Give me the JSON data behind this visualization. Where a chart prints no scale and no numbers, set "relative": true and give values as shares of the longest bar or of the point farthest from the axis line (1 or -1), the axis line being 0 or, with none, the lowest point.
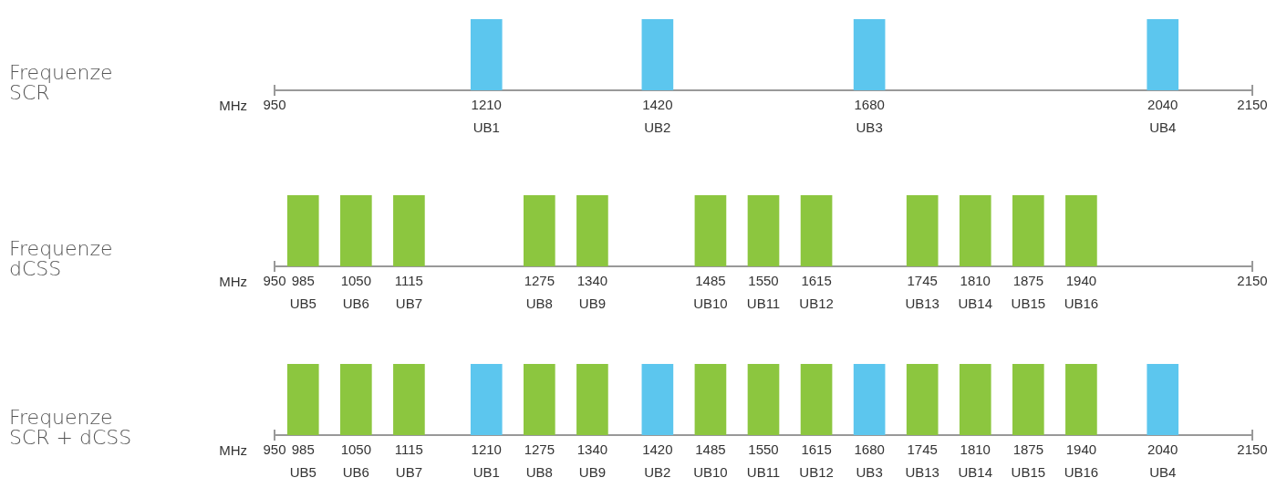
{
  "chart_data": [
    {
      "type": "bar",
      "ylabel": "Frequenze\nSCR",
      "xlabel": "MHz",
      "relative": true,
      "xlim": [
        950,
        2150
      ],
      "xticks": [
        950,
        1210,
        1420,
        1680,
        2040,
        2150
      ],
      "x": [
        1210,
        1420,
        1680,
        2040
      ],
      "values": [
        1,
        1,
        1,
        1
      ],
      "colors": [
        "#5cc6ee",
        "#5cc6ee",
        "#5cc6ee",
        "#5cc6ee"
      ],
      "annotations": [
        {
          "text": "UB1",
          "x": 1210,
          "y": 0
        },
        {
          "text": "UB2",
          "x": 1420,
          "y": 0
        },
        {
          "text": "UB3",
          "x": 1680,
          "y": 0
        },
        {
          "text": "UB4",
          "x": 2040,
          "y": 0
        }
      ]
    },
    {
      "type": "bar",
      "ylabel": "Frequenze\ndCSS",
      "xlabel": "MHz",
      "relative": true,
      "xlim": [
        950,
        2150
      ],
      "xticks": [
        950,
        985,
        1050,
        1115,
        1275,
        1340,
        1485,
        1550,
        1615,
        1745,
        1810,
        1875,
        1940,
        2150
      ],
      "x": [
        985,
        1050,
        1115,
        1275,
        1340,
        1485,
        1550,
        1615,
        1745,
        1810,
        1875,
        1940
      ],
      "values": [
        1,
        1,
        1,
        1,
        1,
        1,
        1,
        1,
        1,
        1,
        1,
        1
      ],
      "colors": [
        "#8cc63f",
        "#8cc63f",
        "#8cc63f",
        "#8cc63f",
        "#8cc63f",
        "#8cc63f",
        "#8cc63f",
        "#8cc63f",
        "#8cc63f",
        "#8cc63f",
        "#8cc63f",
        "#8cc63f"
      ],
      "annotations": [
        {
          "text": "UB5",
          "x": 985,
          "y": 0
        },
        {
          "text": "UB6",
          "x": 1050,
          "y": 0
        },
        {
          "text": "UB7",
          "x": 1115,
          "y": 0
        },
        {
          "text": "UB8",
          "x": 1275,
          "y": 0
        },
        {
          "text": "UB9",
          "x": 1340,
          "y": 0
        },
        {
          "text": "UB10",
          "x": 1485,
          "y": 0
        },
        {
          "text": "UB11",
          "x": 1550,
          "y": 0
        },
        {
          "text": "UB12",
          "x": 1615,
          "y": 0
        },
        {
          "text": "UB13",
          "x": 1745,
          "y": 0
        },
        {
          "text": "UB14",
          "x": 1810,
          "y": 0
        },
        {
          "text": "UB15",
          "x": 1875,
          "y": 0
        },
        {
          "text": "UB16",
          "x": 1940,
          "y": 0
        }
      ]
    },
    {
      "type": "bar",
      "ylabel": "Frequenze\nSCR + dCSS",
      "xlabel": "MHz",
      "relative": true,
      "xlim": [
        950,
        2150
      ],
      "xticks": [
        950,
        985,
        1050,
        1115,
        1210,
        1275,
        1340,
        1420,
        1485,
        1550,
        1615,
        1680,
        1745,
        1810,
        1875,
        1940,
        2040,
        2150
      ],
      "x": [
        985,
        1050,
        1115,
        1210,
        1275,
        1340,
        1420,
        1485,
        1550,
        1615,
        1680,
        1745,
        1810,
        1875,
        1940,
        2040
      ],
      "values": [
        1,
        1,
        1,
        1,
        1,
        1,
        1,
        1,
        1,
        1,
        1,
        1,
        1,
        1,
        1,
        1
      ],
      "colors": [
        "#8cc63f",
        "#8cc63f",
        "#8cc63f",
        "#5cc6ee",
        "#8cc63f",
        "#8cc63f",
        "#5cc6ee",
        "#8cc63f",
        "#8cc63f",
        "#8cc63f",
        "#5cc6ee",
        "#8cc63f",
        "#8cc63f",
        "#8cc63f",
        "#8cc63f",
        "#5cc6ee"
      ],
      "annotations": [
        {
          "text": "UB5",
          "x": 985,
          "y": 0
        },
        {
          "text": "UB6",
          "x": 1050,
          "y": 0
        },
        {
          "text": "UB7",
          "x": 1115,
          "y": 0
        },
        {
          "text": "UB1",
          "x": 1210,
          "y": 0
        },
        {
          "text": "UB8",
          "x": 1275,
          "y": 0
        },
        {
          "text": "UB9",
          "x": 1340,
          "y": 0
        },
        {
          "text": "UB2",
          "x": 1420,
          "y": 0
        },
        {
          "text": "UB10",
          "x": 1485,
          "y": 0
        },
        {
          "text": "UB11",
          "x": 1550,
          "y": 0
        },
        {
          "text": "UB12",
          "x": 1615,
          "y": 0
        },
        {
          "text": "UB3",
          "x": 1680,
          "y": 0
        },
        {
          "text": "UB13",
          "x": 1745,
          "y": 0
        },
        {
          "text": "UB14",
          "x": 1810,
          "y": 0
        },
        {
          "text": "UB15",
          "x": 1875,
          "y": 0
        },
        {
          "text": "UB16",
          "x": 1940,
          "y": 0
        },
        {
          "text": "UB4",
          "x": 2040,
          "y": 0
        }
      ]
    }
  ]
}
